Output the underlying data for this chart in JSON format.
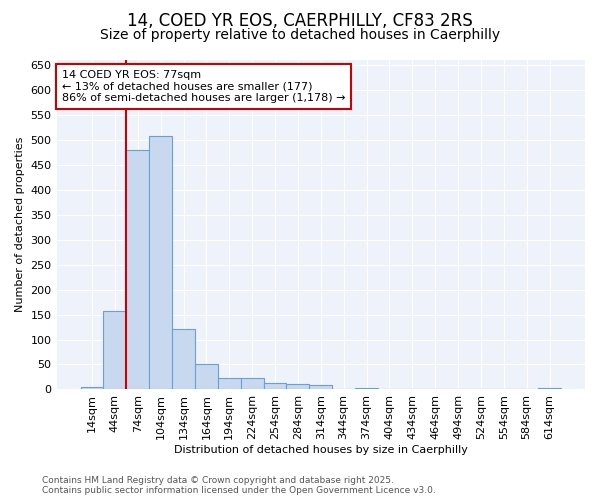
{
  "title": "14, COED YR EOS, CAERPHILLY, CF83 2RS",
  "subtitle": "Size of property relative to detached houses in Caerphilly",
  "xlabel": "Distribution of detached houses by size in Caerphilly",
  "ylabel": "Number of detached properties",
  "bar_values": [
    5,
    158,
    480,
    507,
    122,
    50,
    23,
    23,
    12,
    11,
    8,
    0,
    3,
    0,
    0,
    0,
    0,
    0,
    0,
    0,
    3
  ],
  "bin_labels": [
    "14sqm",
    "44sqm",
    "74sqm",
    "104sqm",
    "134sqm",
    "164sqm",
    "194sqm",
    "224sqm",
    "254sqm",
    "284sqm",
    "314sqm",
    "344sqm",
    "374sqm",
    "404sqm",
    "434sqm",
    "464sqm",
    "494sqm",
    "524sqm",
    "554sqm",
    "584sqm",
    "614sqm"
  ],
  "bar_color": "#c8d9ef",
  "bar_edge_color": "#6a9fd8",
  "marker_line_color": "#cc0000",
  "annotation_line1": "14 COED YR EOS: 77sqm",
  "annotation_line2": "← 13% of detached houses are smaller (177)",
  "annotation_line3": "86% of semi-detached houses are larger (1,178) →",
  "annotation_box_facecolor": "#ffffff",
  "annotation_box_edgecolor": "#cc0000",
  "ylim": [
    0,
    660
  ],
  "yticks": [
    0,
    50,
    100,
    150,
    200,
    250,
    300,
    350,
    400,
    450,
    500,
    550,
    600,
    650
  ],
  "footer_line1": "Contains HM Land Registry data © Crown copyright and database right 2025.",
  "footer_line2": "Contains public sector information licensed under the Open Government Licence v3.0.",
  "bg_color": "#ffffff",
  "plot_bg_color": "#eef2fb",
  "grid_color": "#ffffff",
  "title_fontsize": 12,
  "subtitle_fontsize": 10,
  "axis_label_fontsize": 8,
  "tick_fontsize": 8,
  "annotation_fontsize": 8,
  "footer_fontsize": 6.5
}
